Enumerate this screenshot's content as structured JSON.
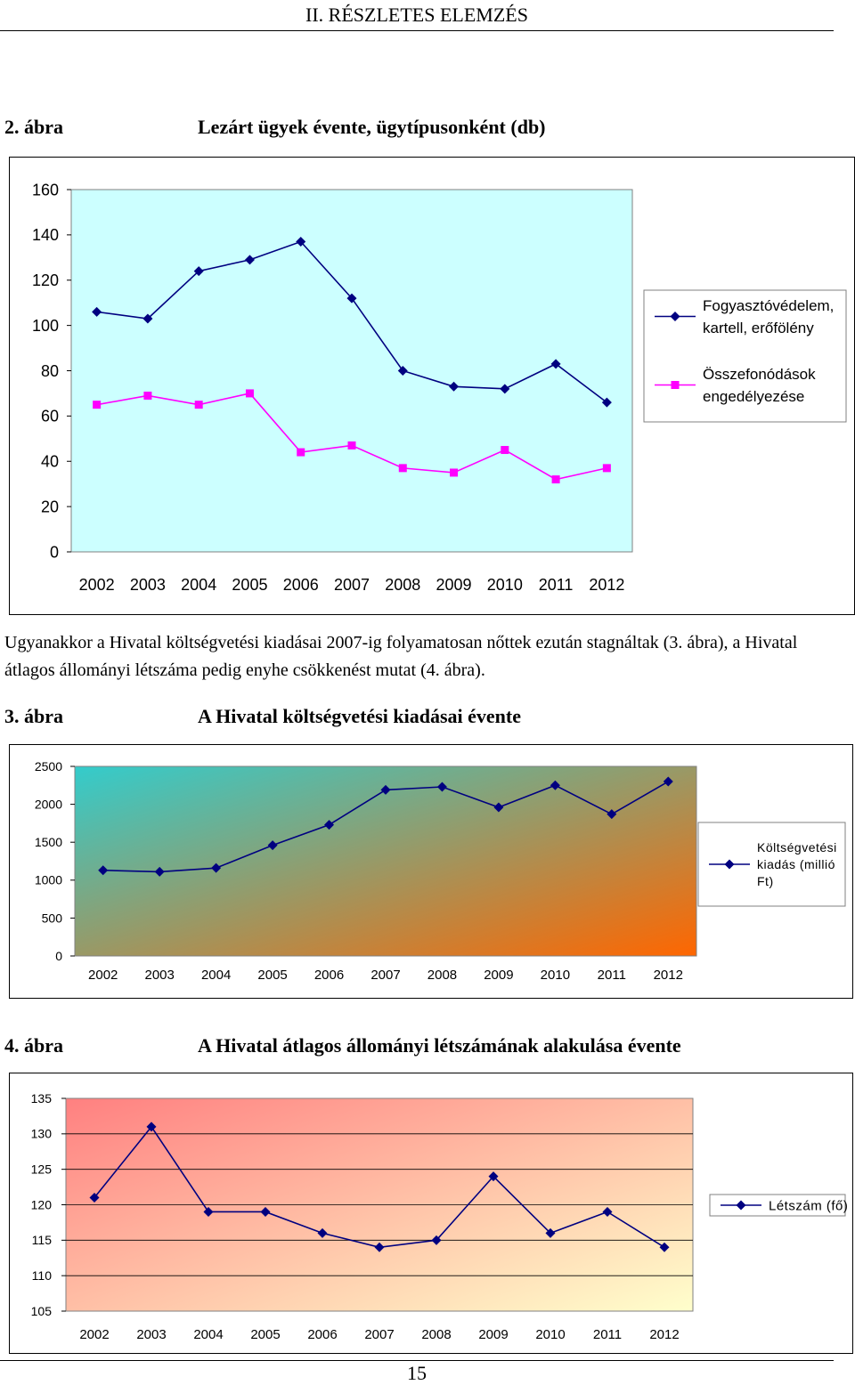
{
  "header": {
    "title": "II. RÉSZLETES ELEMZÉS"
  },
  "figures": [
    {
      "number": "2. ábra",
      "title": "Lezárt ügyek évente, ügytípusonként (db)"
    },
    {
      "number": "3. ábra",
      "title": "A Hivatal költségvetési kiadásai évente"
    },
    {
      "number": "4. ábra",
      "title": "A Hivatal átlagos állományi létszámának alakulása évente"
    }
  ],
  "paragraph": {
    "text": "Ugyanakkor a Hivatal költségvetési kiadásai 2007-ig folyamatosan nőttek ezután stagnáltak (3. ábra), a Hivatal átlagos állományi létszáma pedig enyhe csökkenést mutat (4. ábra)."
  },
  "page_number": "15",
  "chart_data": [
    {
      "type": "line",
      "categories": [
        "2002",
        "2003",
        "2004",
        "2005",
        "2006",
        "2007",
        "2008",
        "2009",
        "2010",
        "2011",
        "2012"
      ],
      "series": [
        {
          "name": "Fogyasztóvédelem, kartell, erőfölény",
          "values": [
            106,
            103,
            124,
            129,
            137,
            112,
            80,
            73,
            72,
            83,
            66
          ],
          "color": "#000080",
          "marker": "diamond"
        },
        {
          "name": "Összefonódások engedélyezése",
          "values": [
            65,
            69,
            65,
            70,
            44,
            47,
            37,
            35,
            45,
            32,
            37
          ],
          "color": "#ff00ff",
          "marker": "square"
        }
      ],
      "yticks": [
        "0",
        "20",
        "40",
        "60",
        "80",
        "100",
        "120",
        "140",
        "160"
      ],
      "ylim": [
        0,
        160
      ],
      "plot_background": "#ccffff",
      "legend": "right"
    },
    {
      "type": "line",
      "categories": [
        "2002",
        "2003",
        "2004",
        "2005",
        "2006",
        "2007",
        "2008",
        "2009",
        "2010",
        "2011",
        "2012"
      ],
      "series": [
        {
          "name": "Költségvetési kiadás (millió Ft)",
          "values": [
            1130,
            1110,
            1160,
            1460,
            1730,
            2190,
            2230,
            1960,
            2250,
            1870,
            2300
          ],
          "color": "#000080",
          "marker": "diamond"
        }
      ],
      "yticks": [
        "0",
        "500",
        "1000",
        "1500",
        "2000",
        "2500"
      ],
      "ylim": [
        0,
        2500
      ],
      "plot_background": [
        "#33cccc",
        "#ff6600"
      ],
      "legend": "right"
    },
    {
      "type": "line",
      "categories": [
        "2002",
        "2003",
        "2004",
        "2005",
        "2006",
        "2007",
        "2008",
        "2009",
        "2010",
        "2011",
        "2012"
      ],
      "series": [
        {
          "name": "Létszám (fő)",
          "values": [
            121,
            131,
            119,
            119,
            116,
            114,
            115,
            124,
            116,
            119,
            114
          ],
          "color": "#000080",
          "marker": "diamond"
        }
      ],
      "yticks": [
        "105",
        "110",
        "115",
        "120",
        "125",
        "130",
        "135"
      ],
      "ylim": [
        105,
        135
      ],
      "plot_background": [
        "#ff8080",
        "#ffffcc"
      ],
      "legend": "right"
    }
  ]
}
